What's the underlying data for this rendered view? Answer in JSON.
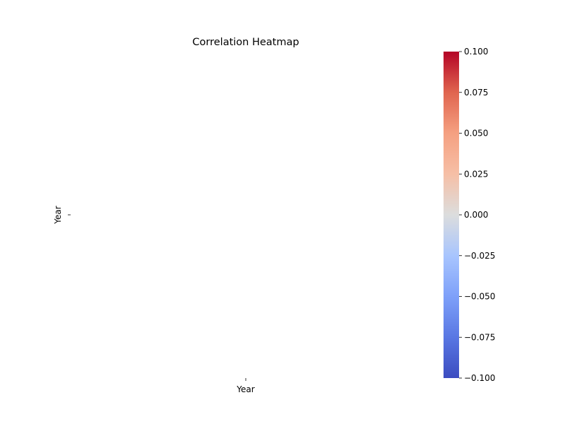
{
  "chart_data": {
    "type": "heatmap",
    "title": "Correlation Heatmap",
    "x_categories": [
      "Year"
    ],
    "y_categories": [
      "Year"
    ],
    "values": [
      [
        null
      ]
    ],
    "colorbar": {
      "colormap": "coolwarm",
      "range": [
        -0.1,
        0.1
      ],
      "ticks": [
        -0.1,
        -0.075,
        -0.05,
        -0.025,
        0.0,
        0.025,
        0.05,
        0.075,
        0.1
      ],
      "tick_labels": [
        "−0.100",
        "−0.075",
        "−0.050",
        "−0.025",
        "0.000",
        "0.025",
        "0.050",
        "0.075",
        "0.100"
      ],
      "colors": [
        "#3b4cc0",
        "#6788ee",
        "#9abbff",
        "#c9d7f0",
        "#dddddd",
        "#f7c4ab",
        "#f49a7b",
        "#dc5d4a",
        "#b40426"
      ]
    },
    "grid": false,
    "legend": "colorbar-right"
  }
}
